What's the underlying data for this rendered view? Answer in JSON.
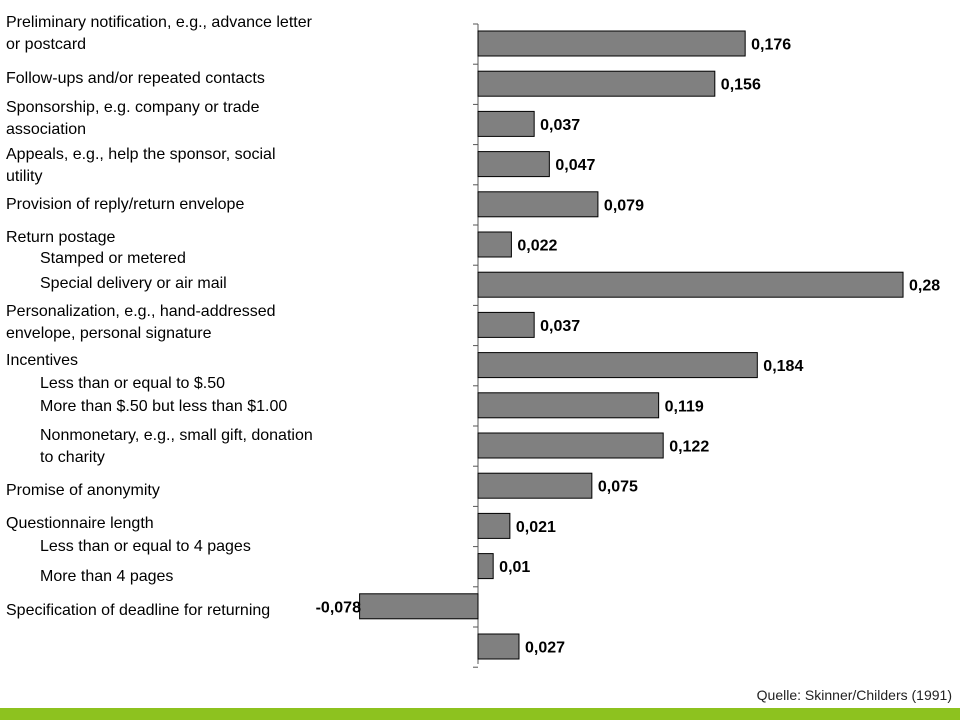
{
  "labels": [
    {
      "text": "Preliminary notification, e.g., advance letter",
      "indent": false
    },
    {
      "text": "or postcard",
      "indent": false
    },
    {
      "text": "Follow-ups and/or repeated contacts",
      "indent": false
    },
    {
      "text": "Sponsorship, e.g. company or trade",
      "indent": false
    },
    {
      "text": "association",
      "indent": false
    },
    {
      "text": "Appeals, e.g., help the sponsor, social",
      "indent": false
    },
    {
      "text": "utility",
      "indent": false
    },
    {
      "text": "Provision of reply/return envelope",
      "indent": false
    },
    {
      "text": "Return postage",
      "indent": false
    },
    {
      "text": "Stamped or metered",
      "indent": true
    },
    {
      "text": "Special delivery or air mail",
      "indent": true
    },
    {
      "text": "Personalization, e.g., hand-addressed",
      "indent": false
    },
    {
      "text": "envelope, personal signature",
      "indent": false
    },
    {
      "text": "Incentives",
      "indent": false
    },
    {
      "text": "Less than or equal to $.50",
      "indent": true
    },
    {
      "text": "More than $.50 but less than $1.00",
      "indent": true
    },
    {
      "text": "Nonmonetary, e.g., small gift, donation",
      "indent": true
    },
    {
      "text": "to charity",
      "indent": true
    },
    {
      "text": "Promise of anonymity",
      "indent": false
    },
    {
      "text": "Questionnaire length",
      "indent": false
    },
    {
      "text": "Less than or equal to 4 pages",
      "indent": true
    },
    {
      "text": "More than 4 pages",
      "indent": true
    },
    {
      "text": "Specification of deadline for returning",
      "indent": false
    }
  ],
  "chart_data": {
    "type": "bar",
    "orientation": "horizontal",
    "values": [
      0.176,
      0.156,
      0.037,
      0.047,
      0.079,
      0.022,
      0.28,
      0.037,
      0.184,
      0.119,
      0.122,
      0.075,
      0.021,
      0.01,
      -0.078,
      0.027
    ],
    "value_labels": [
      "0,176",
      "0,156",
      "0,037",
      "0,047",
      "0,079",
      "0,022",
      "0,28",
      "0,037",
      "0,184",
      "0,119",
      "0,122",
      "0,075",
      "0,021",
      "0,01",
      "-0,078",
      "0,027"
    ],
    "bar_color": "#808080",
    "bar_stroke": "#000000"
  },
  "source": "Quelle: Skinner/Childers (1991)",
  "colors": {
    "footer_bar": "#8dc21f",
    "background": "#ffffff"
  }
}
